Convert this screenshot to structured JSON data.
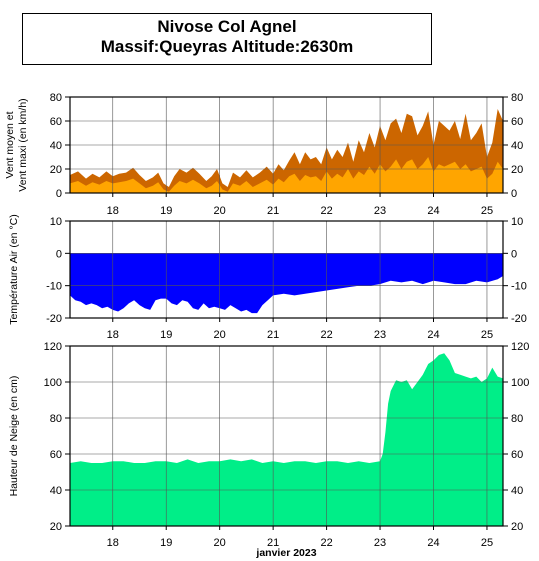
{
  "header": {
    "title_line1": "Nivose Col Agnel",
    "title_line2": "Massif:Queyras Altitude:2630m"
  },
  "colors": {
    "wind_max": "#cc6600",
    "wind_mean": "#ffa500",
    "temperature": "#0000ff",
    "snow": "#00ee88"
  },
  "chart_data": [
    {
      "type": "area",
      "name": "wind",
      "ylabel": [
        "Vent moyen et",
        "Vent maxi (en km/h)"
      ],
      "ylim": [
        0,
        80
      ],
      "yticks": [
        0,
        20,
        40,
        60,
        80
      ],
      "x_day_labels": [
        "18",
        "19",
        "20",
        "21",
        "22",
        "23",
        "24",
        "25"
      ],
      "grid": true,
      "series": [
        {
          "role": "max",
          "x": [
            17.2,
            17.35,
            17.5,
            17.62,
            17.75,
            17.88,
            18.0,
            18.12,
            18.25,
            18.38,
            18.5,
            18.62,
            18.75,
            18.85,
            18.95,
            19.05,
            19.15,
            19.25,
            19.38,
            19.5,
            19.62,
            19.75,
            19.85,
            19.95,
            20.05,
            20.15,
            20.25,
            20.38,
            20.5,
            20.62,
            20.75,
            20.88,
            21.0,
            21.1,
            21.2,
            21.3,
            21.4,
            21.5,
            21.6,
            21.7,
            21.8,
            21.9,
            22.0,
            22.1,
            22.2,
            22.3,
            22.4,
            22.5,
            22.6,
            22.7,
            22.8,
            22.9,
            23.0,
            23.1,
            23.2,
            23.3,
            23.4,
            23.5,
            23.6,
            23.7,
            23.8,
            23.9,
            24.0,
            24.1,
            24.2,
            24.3,
            24.4,
            24.5,
            24.6,
            24.7,
            24.8,
            24.9,
            25.0,
            25.1,
            25.2,
            25.3
          ],
          "values": [
            15,
            18,
            12,
            16,
            13,
            18,
            14,
            16,
            17,
            21,
            15,
            10,
            13,
            17,
            8,
            5,
            14,
            20,
            17,
            21,
            16,
            10,
            14,
            20,
            8,
            5,
            17,
            13,
            19,
            13,
            17,
            22,
            16,
            24,
            19,
            27,
            34,
            24,
            34,
            28,
            30,
            24,
            38,
            28,
            36,
            30,
            42,
            26,
            44,
            34,
            50,
            38,
            56,
            44,
            58,
            62,
            50,
            66,
            64,
            48,
            56,
            68,
            40,
            60,
            56,
            52,
            60,
            45,
            66,
            44,
            50,
            58,
            30,
            42,
            70,
            60
          ]
        },
        {
          "role": "mean",
          "x": [
            17.2,
            17.35,
            17.5,
            17.62,
            17.75,
            17.88,
            18.0,
            18.12,
            18.25,
            18.38,
            18.5,
            18.62,
            18.75,
            18.85,
            18.95,
            19.05,
            19.15,
            19.25,
            19.38,
            19.5,
            19.62,
            19.75,
            19.85,
            19.95,
            20.05,
            20.15,
            20.25,
            20.38,
            20.5,
            20.62,
            20.75,
            20.88,
            21.0,
            21.1,
            21.2,
            21.3,
            21.4,
            21.5,
            21.6,
            21.7,
            21.8,
            21.9,
            22.0,
            22.1,
            22.2,
            22.3,
            22.4,
            22.5,
            22.6,
            22.7,
            22.8,
            22.9,
            23.0,
            23.1,
            23.2,
            23.3,
            23.4,
            23.5,
            23.6,
            23.7,
            23.8,
            23.9,
            24.0,
            24.1,
            24.2,
            24.3,
            24.4,
            24.5,
            24.6,
            24.7,
            24.8,
            24.9,
            25.0,
            25.1,
            25.2,
            25.3
          ],
          "values": [
            8,
            10,
            6,
            9,
            7,
            10,
            8,
            9,
            10,
            12,
            8,
            4,
            6,
            9,
            3,
            1,
            6,
            10,
            8,
            11,
            8,
            4,
            6,
            10,
            3,
            1,
            8,
            6,
            10,
            5,
            8,
            11,
            7,
            12,
            9,
            14,
            16,
            10,
            15,
            13,
            14,
            10,
            18,
            12,
            16,
            13,
            20,
            12,
            18,
            15,
            22,
            16,
            24,
            18,
            22,
            28,
            20,
            26,
            28,
            20,
            24,
            30,
            18,
            24,
            22,
            24,
            26,
            20,
            24,
            18,
            20,
            22,
            12,
            16,
            26,
            20
          ]
        }
      ]
    },
    {
      "type": "area",
      "name": "temperature",
      "ylabel": "Température Air (en °C)",
      "ylim": [
        -20,
        10
      ],
      "yticks": [
        -20,
        -10,
        0,
        10
      ],
      "x_day_labels": [
        "18",
        "19",
        "20",
        "21",
        "22",
        "23",
        "24",
        "25"
      ],
      "grid": true,
      "series": [
        {
          "role": "temperature",
          "x": [
            17.2,
            17.3,
            17.4,
            17.5,
            17.6,
            17.7,
            17.8,
            17.9,
            18.0,
            18.1,
            18.2,
            18.3,
            18.4,
            18.5,
            18.6,
            18.7,
            18.8,
            18.9,
            19.0,
            19.1,
            19.2,
            19.3,
            19.4,
            19.5,
            19.6,
            19.7,
            19.8,
            19.9,
            20.0,
            20.1,
            20.2,
            20.3,
            20.4,
            20.5,
            20.6,
            20.7,
            20.8,
            20.9,
            21.0,
            21.2,
            21.4,
            21.6,
            21.8,
            22.0,
            22.2,
            22.4,
            22.6,
            22.8,
            23.0,
            23.2,
            23.4,
            23.6,
            23.8,
            24.0,
            24.2,
            24.4,
            24.6,
            24.8,
            25.0,
            25.2,
            25.3
          ],
          "values": [
            -13,
            -14.5,
            -15,
            -16,
            -15.5,
            -16,
            -17,
            -16.5,
            -17.5,
            -18,
            -17,
            -15.5,
            -14.5,
            -16,
            -17,
            -17.5,
            -14.5,
            -14,
            -14,
            -15.5,
            -16,
            -14.5,
            -15,
            -17,
            -17.5,
            -15.5,
            -17,
            -16.5,
            -17,
            -17.5,
            -16,
            -17,
            -18,
            -17.5,
            -18.5,
            -18.5,
            -16,
            -14.5,
            -13,
            -12.5,
            -13,
            -12.5,
            -12,
            -11.5,
            -11,
            -10.5,
            -10,
            -10,
            -9.5,
            -8.5,
            -9,
            -8.5,
            -9.5,
            -8.5,
            -9,
            -9.5,
            -9.5,
            -8.5,
            -9,
            -8,
            -7
          ]
        }
      ]
    },
    {
      "type": "area",
      "name": "snow",
      "ylabel": "Hauteur de Neige (en cm)",
      "xlabel": "janvier 2023",
      "ylim": [
        20,
        120
      ],
      "yticks": [
        20,
        40,
        60,
        80,
        100,
        120
      ],
      "x_day_labels": [
        "18",
        "19",
        "20",
        "21",
        "22",
        "23",
        "24",
        "25"
      ],
      "grid": true,
      "series": [
        {
          "role": "snow_height",
          "x": [
            17.2,
            17.4,
            17.6,
            17.8,
            18.0,
            18.2,
            18.4,
            18.6,
            18.8,
            19.0,
            19.2,
            19.4,
            19.6,
            19.8,
            20.0,
            20.2,
            20.4,
            20.6,
            20.8,
            21.0,
            21.2,
            21.4,
            21.6,
            21.8,
            22.0,
            22.2,
            22.4,
            22.6,
            22.8,
            23.0,
            23.05,
            23.1,
            23.15,
            23.2,
            23.3,
            23.4,
            23.5,
            23.6,
            23.7,
            23.8,
            23.9,
            24.0,
            24.1,
            24.2,
            24.3,
            24.4,
            24.5,
            24.6,
            24.7,
            24.8,
            24.9,
            25.0,
            25.1,
            25.2,
            25.3
          ],
          "values": [
            55,
            56,
            55,
            55,
            56,
            56,
            55,
            55,
            56,
            56,
            55,
            57,
            55,
            56,
            56,
            57,
            56,
            57,
            55,
            56,
            55,
            56,
            56,
            55,
            56,
            56,
            55,
            56,
            55,
            56,
            60,
            72,
            88,
            95,
            101,
            100,
            101,
            96,
            100,
            104,
            110,
            112,
            115,
            116,
            112,
            105,
            104,
            103,
            102,
            103,
            100,
            102,
            108,
            103,
            102
          ]
        }
      ]
    }
  ]
}
